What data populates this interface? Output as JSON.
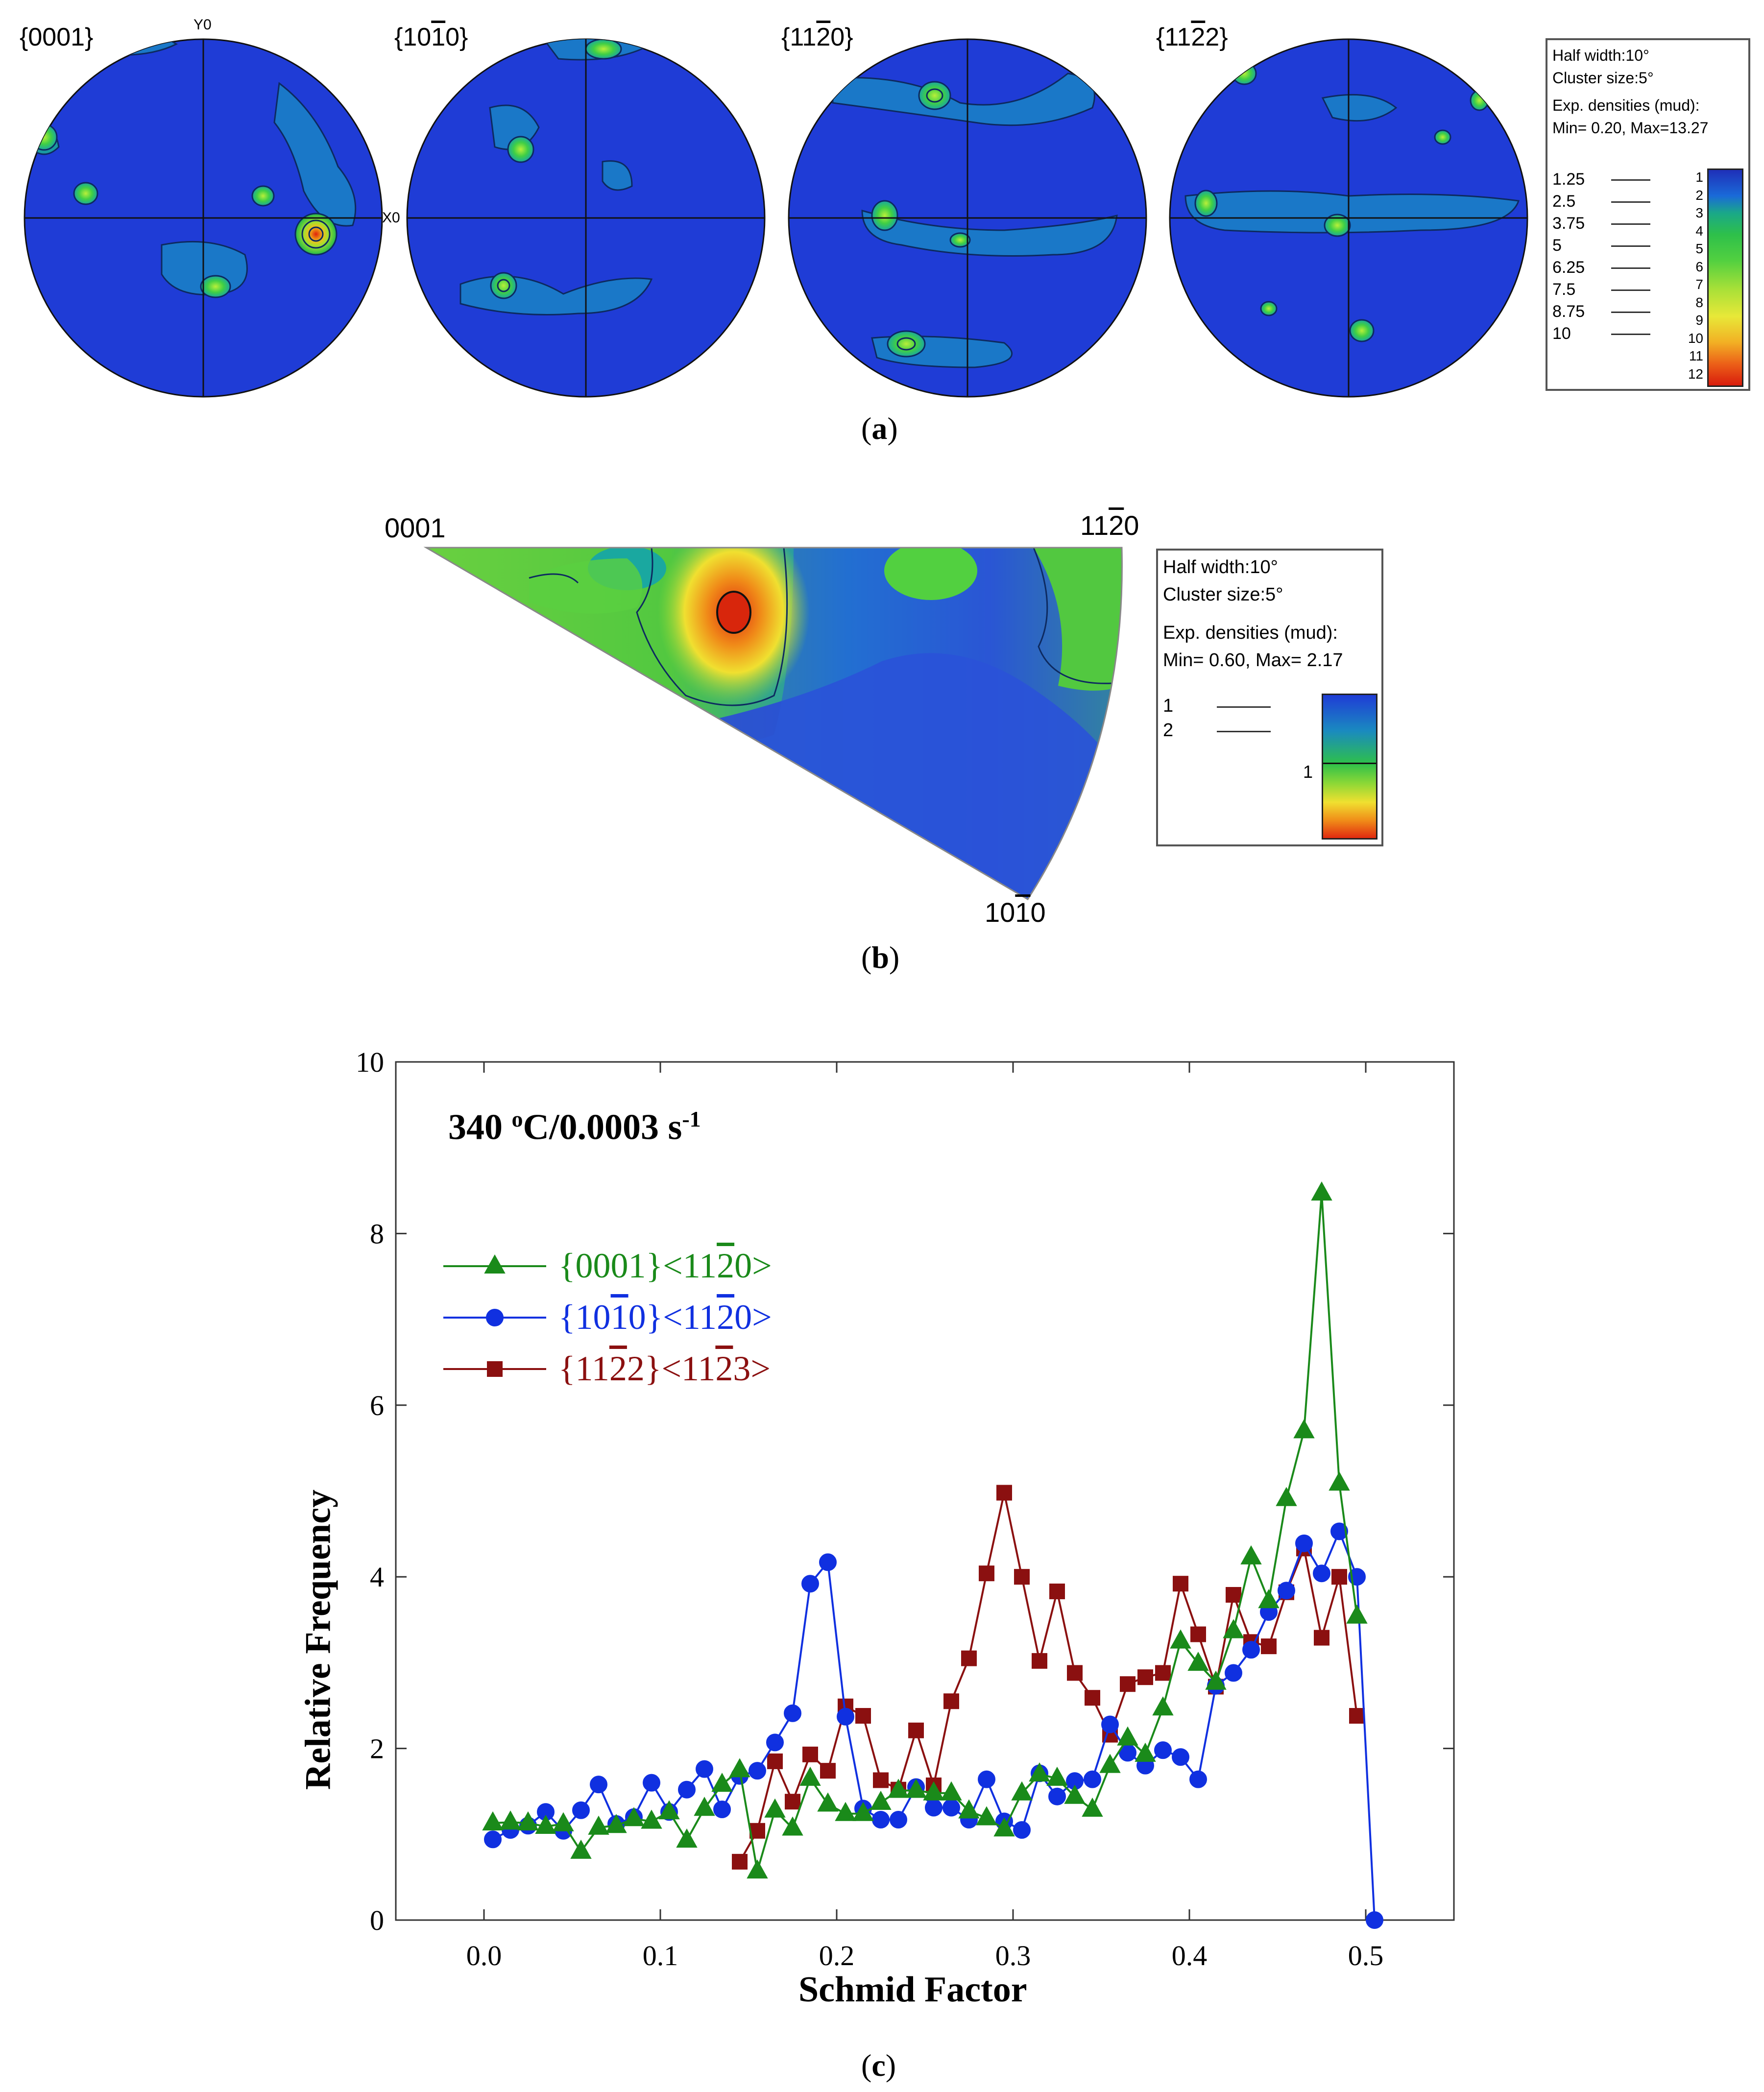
{
  "colors": {
    "density_low": "#1f3cd6",
    "density_mid": "#22b84a",
    "density_high": "#e02a10",
    "series_basal": "#1a8a1a",
    "series_prismatic": "#1030e0",
    "series_pyramidal": "#8b1010"
  },
  "panel_a": {
    "caption_open": "(",
    "caption_letter": "a",
    "caption_close": ")",
    "pole_figures": [
      {
        "label": "{0001}"
      },
      {
        "label": "{10",
        "bar": "1",
        "rest": "0}"
      },
      {
        "label": "{11",
        "bar": "2",
        "rest": "0}"
      },
      {
        "label": "{11",
        "bar": "2",
        "rest": "2}"
      }
    ],
    "axis_y": "Y0",
    "axis_x": "X0",
    "legend": {
      "half_width": "Half width:10°",
      "cluster_size": "Cluster size:5°",
      "density_title": "Exp. densities (mud):",
      "min_max": "Min= 0.20, Max=13.27",
      "contour_levels": [
        "1.25",
        "2.5",
        "3.75",
        "5",
        "6.25",
        "7.5",
        "8.75",
        "10"
      ],
      "scale_ticks": [
        "1",
        "2",
        "3",
        "4",
        "5",
        "6",
        "7",
        "8",
        "9",
        "10",
        "11",
        "12"
      ]
    }
  },
  "panel_b": {
    "caption_open": "(",
    "caption_letter": "b",
    "caption_close": ")",
    "corner_0001": "0001",
    "corner_1120": {
      "pre": "11",
      "bar": "2",
      "post": "0"
    },
    "corner_1010": {
      "pre": "10",
      "bar": "1",
      "post": "0"
    },
    "legend": {
      "half_width": "Half width:10°",
      "cluster_size": "Cluster size:5°",
      "density_title": "Exp. densities (mud):",
      "min_max": "Min= 0.60, Max= 2.17",
      "contour_levels": [
        "1",
        "2"
      ],
      "scale_tick": "1"
    }
  },
  "panel_c": {
    "caption_open": "(",
    "caption_letter": "c",
    "caption_close": ")",
    "condition": {
      "prefix": "340 ",
      "deg": "o",
      "mid": "C/0.0003 s",
      "exp": "-1"
    }
  },
  "chart_data": {
    "type": "line",
    "title": "340 °C/0.0003 s-1",
    "xlabel": "Schmid Factor",
    "ylabel": "Relative Frequency",
    "xlim": [
      -0.05,
      0.55
    ],
    "ylim": [
      0,
      10
    ],
    "xticks": [
      "0.0",
      "0.1",
      "0.2",
      "0.3",
      "0.4",
      "0.5"
    ],
    "yticks": [
      "0",
      "2",
      "4",
      "6",
      "8",
      "10"
    ],
    "grid": false,
    "legend_position": "upper-left",
    "series": [
      {
        "name": "{0001}<11-20>",
        "legend_parts": [
          "{0001}<11",
          "2",
          "0>"
        ],
        "marker": "triangle",
        "color": "#1a8a1a",
        "x": [
          0.005,
          0.015,
          0.025,
          0.035,
          0.045,
          0.055,
          0.065,
          0.075,
          0.085,
          0.095,
          0.105,
          0.115,
          0.125,
          0.135,
          0.145,
          0.155,
          0.165,
          0.175,
          0.185,
          0.195,
          0.205,
          0.215,
          0.225,
          0.235,
          0.245,
          0.255,
          0.265,
          0.275,
          0.285,
          0.295,
          0.305,
          0.315,
          0.325,
          0.335,
          0.345,
          0.355,
          0.365,
          0.375,
          0.385,
          0.395,
          0.405,
          0.415,
          0.425,
          0.435,
          0.445,
          0.455,
          0.465,
          0.475,
          0.485,
          0.495
        ],
        "values": [
          1.13,
          1.14,
          1.13,
          1.09,
          1.12,
          0.8,
          1.08,
          1.1,
          1.18,
          1.15,
          1.26,
          0.93,
          1.3,
          1.58,
          1.75,
          0.57,
          1.28,
          1.07,
          1.65,
          1.35,
          1.24,
          1.24,
          1.37,
          1.51,
          1.51,
          1.48,
          1.48,
          1.27,
          1.19,
          1.06,
          1.48,
          1.7,
          1.65,
          1.44,
          1.29,
          1.8,
          2.12,
          1.93,
          2.47,
          3.25,
          2.99,
          2.77,
          3.37,
          4.23,
          3.72,
          4.91,
          5.7,
          8.47,
          5.09,
          3.54
        ]
      },
      {
        "name": "{10-10}<11-20>",
        "legend_parts": [
          "{10",
          "1",
          "0}<11",
          "2",
          "0>"
        ],
        "marker": "circle",
        "color": "#1030e0",
        "x": [
          0.005,
          0.015,
          0.025,
          0.035,
          0.045,
          0.055,
          0.065,
          0.075,
          0.085,
          0.095,
          0.105,
          0.115,
          0.125,
          0.135,
          0.145,
          0.155,
          0.165,
          0.175,
          0.185,
          0.195,
          0.205,
          0.215,
          0.225,
          0.235,
          0.245,
          0.255,
          0.265,
          0.275,
          0.285,
          0.295,
          0.305,
          0.315,
          0.325,
          0.335,
          0.345,
          0.355,
          0.365,
          0.375,
          0.385,
          0.395,
          0.405,
          0.415,
          0.425,
          0.435,
          0.445,
          0.455,
          0.465,
          0.475,
          0.485,
          0.495,
          0.505
        ],
        "values": [
          0.94,
          1.05,
          1.1,
          1.26,
          1.04,
          1.28,
          1.58,
          1.12,
          1.2,
          1.6,
          1.26,
          1.52,
          1.76,
          1.29,
          1.68,
          1.74,
          2.07,
          2.41,
          3.92,
          4.17,
          2.37,
          1.3,
          1.17,
          1.17,
          1.55,
          1.31,
          1.31,
          1.17,
          1.64,
          1.15,
          1.05,
          1.71,
          1.44,
          1.62,
          1.64,
          2.28,
          1.95,
          1.8,
          1.98,
          1.9,
          1.64,
          2.73,
          2.88,
          3.15,
          3.59,
          3.84,
          4.39,
          4.04,
          4.53,
          4.0,
          0.0
        ]
      },
      {
        "name": "{11-22}<11-23>",
        "legend_parts": [
          "{11",
          "2",
          "2}<11",
          "2",
          "3>"
        ],
        "marker": "square",
        "color": "#8b1010",
        "x": [
          0.145,
          0.155,
          0.165,
          0.175,
          0.185,
          0.195,
          0.205,
          0.215,
          0.225,
          0.235,
          0.245,
          0.255,
          0.265,
          0.275,
          0.285,
          0.295,
          0.305,
          0.315,
          0.325,
          0.335,
          0.345,
          0.355,
          0.365,
          0.375,
          0.385,
          0.395,
          0.405,
          0.415,
          0.425,
          0.435,
          0.445,
          0.455,
          0.465,
          0.475,
          0.485,
          0.495
        ],
        "values": [
          0.68,
          1.04,
          1.85,
          1.38,
          1.93,
          1.74,
          2.49,
          2.38,
          1.63,
          1.52,
          2.21,
          1.57,
          2.55,
          3.05,
          4.04,
          4.98,
          4.0,
          3.02,
          3.83,
          2.88,
          2.59,
          2.16,
          2.75,
          2.83,
          2.88,
          3.92,
          3.33,
          2.72,
          3.79,
          3.24,
          3.19,
          3.82,
          4.33,
          3.29,
          4.0,
          2.38
        ]
      }
    ]
  }
}
